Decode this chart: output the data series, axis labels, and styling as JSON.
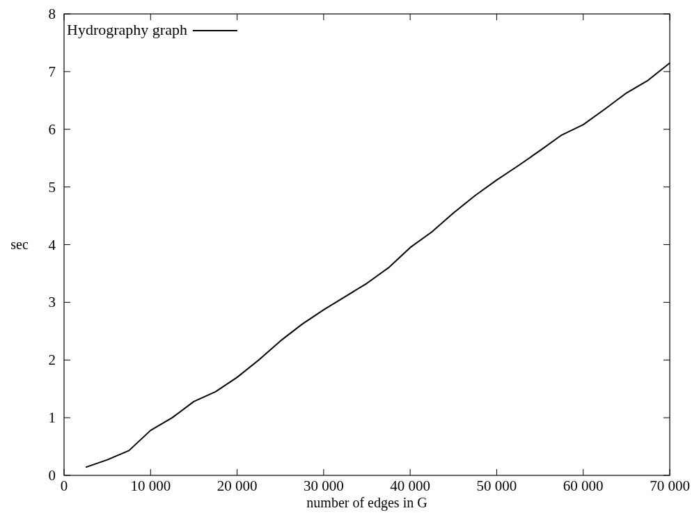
{
  "chart_data": {
    "type": "line",
    "xlabel": "number of edges in G",
    "ylabel": "sec",
    "xlim": [
      0,
      70000
    ],
    "ylim": [
      0,
      8
    ],
    "xticks": [
      0,
      {
        "value": 10000,
        "label": "10 000"
      },
      {
        "value": 20000,
        "label": "20 000"
      },
      {
        "value": 30000,
        "label": "30 000"
      },
      {
        "value": 40000,
        "label": "40 000"
      },
      {
        "value": 50000,
        "label": "50 000"
      },
      {
        "value": 60000,
        "label": "60 000"
      },
      {
        "value": 70000,
        "label": "70 000"
      }
    ],
    "yticks": [
      0,
      1,
      2,
      3,
      4,
      5,
      6,
      7,
      8
    ],
    "legend": "top left",
    "grid": false,
    "marker": "none",
    "line_style": "solid",
    "series": [
      {
        "name": "Hydrography graph",
        "color": "#000000",
        "x": [
          2500,
          5000,
          7500,
          10000,
          12500,
          15000,
          17500,
          20000,
          22500,
          25000,
          27500,
          30000,
          32500,
          35000,
          37500,
          40000,
          42500,
          45000,
          47500,
          50000,
          52500,
          55000,
          57500,
          60000,
          62500,
          65000,
          67500,
          70000
        ],
        "values": [
          0.14,
          0.27,
          0.43,
          0.78,
          1.0,
          1.28,
          1.45,
          1.7,
          2.0,
          2.33,
          2.62,
          2.87,
          3.1,
          3.33,
          3.6,
          3.95,
          4.22,
          4.55,
          4.85,
          5.12,
          5.37,
          5.63,
          5.9,
          6.08,
          6.35,
          6.63,
          6.85,
          7.15
        ]
      }
    ]
  }
}
